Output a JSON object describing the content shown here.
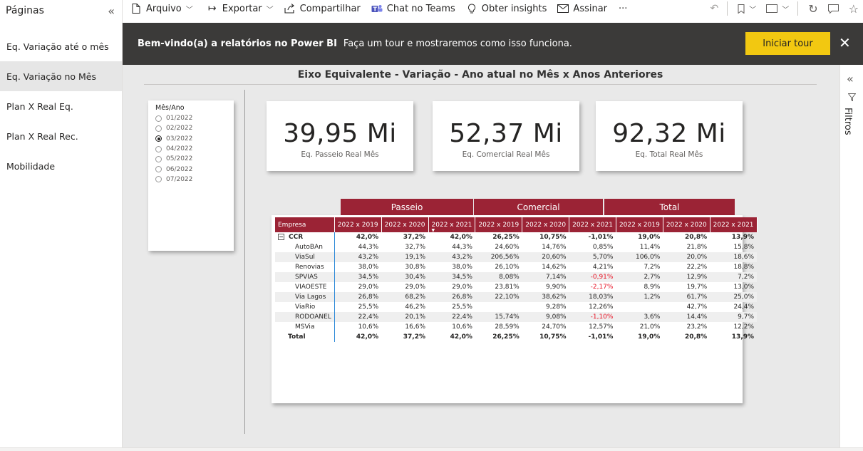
{
  "pages": {
    "title": "Páginas",
    "items": [
      {
        "label": "Eq. Variação até o mês",
        "active": false
      },
      {
        "label": "Eq. Variação no Mês",
        "active": true
      },
      {
        "label": "Plan X Real Eq.",
        "active": false
      },
      {
        "label": "Plan X Real Rec.",
        "active": false
      },
      {
        "label": "Mobilidade",
        "active": false
      }
    ]
  },
  "toolbar": {
    "file": "Arquivo",
    "export": "Exportar",
    "share": "Compartilhar",
    "teams": "Chat no Teams",
    "insights": "Obter insights",
    "subscribe": "Assinar",
    "more": "···"
  },
  "banner": {
    "bold": "Bem-vindo(a) a relatórios no Power BI",
    "text": "Faça um tour e mostraremos como isso funciona.",
    "button": "Iniciar tour",
    "close": "✕"
  },
  "report": {
    "title": "Eixo Equivalente - Variação - Ano atual no Mês x Anos Anteriores"
  },
  "slicer": {
    "title": "Mês/Ano",
    "options": [
      "01/2022",
      "02/2022",
      "03/2022",
      "04/2022",
      "05/2022",
      "06/2022",
      "07/2022"
    ],
    "selected": "03/2022"
  },
  "cards": [
    {
      "value": "39,95 Mi",
      "label": "Eq. Passeio Real Mês"
    },
    {
      "value": "52,37 Mi",
      "label": "Eq. Comercial Real Mês"
    },
    {
      "value": "92,32 Mi",
      "label": "Eq. Total Real Mês"
    }
  ],
  "matrix": {
    "groups": [
      "Passeio",
      "Comercial",
      "Total"
    ],
    "row_header": "Empresa",
    "columns": [
      "2022 x 2019",
      "2022 x 2020",
      "2022 x 2021",
      "2022 x 2019",
      "2022 x 2020",
      "2022 x 2021",
      "2022 x 2019",
      "2022 x 2020",
      "2022 x 2021"
    ],
    "rows": [
      {
        "name": "CCR",
        "level": 0,
        "bold": true,
        "expand": "−",
        "values": [
          "42,0%",
          "37,2%",
          "42,0%",
          "26,25%",
          "10,75%",
          "-1,01%",
          "19,0%",
          "20,8%",
          "13,9%"
        ]
      },
      {
        "name": "AutoBAn",
        "level": 1,
        "bold": false,
        "values": [
          "44,3%",
          "32,7%",
          "44,3%",
          "24,60%",
          "14,76%",
          "0,85%",
          "11,4%",
          "21,8%",
          "15,8%"
        ]
      },
      {
        "name": "ViaSul",
        "level": 1,
        "bold": false,
        "values": [
          "43,2%",
          "19,1%",
          "43,2%",
          "206,56%",
          "20,60%",
          "5,70%",
          "106,0%",
          "20,0%",
          "18,6%"
        ]
      },
      {
        "name": "Renovias",
        "level": 1,
        "bold": false,
        "values": [
          "38,0%",
          "30,8%",
          "38,0%",
          "26,10%",
          "14,62%",
          "4,21%",
          "7,2%",
          "22,2%",
          "18,8%"
        ]
      },
      {
        "name": "SPVIAS",
        "level": 1,
        "bold": false,
        "values": [
          "34,5%",
          "30,4%",
          "34,5%",
          "8,08%",
          "7,14%",
          "-0,91%",
          "2,7%",
          "12,9%",
          "7,2%"
        ]
      },
      {
        "name": "VIAOESTE",
        "level": 1,
        "bold": false,
        "values": [
          "29,0%",
          "29,0%",
          "29,0%",
          "23,81%",
          "9,90%",
          "-2,17%",
          "8,9%",
          "19,7%",
          "13,0%"
        ]
      },
      {
        "name": "Via Lagos",
        "level": 1,
        "bold": false,
        "values": [
          "26,8%",
          "68,2%",
          "26,8%",
          "22,10%",
          "38,62%",
          "18,03%",
          "1,2%",
          "61,7%",
          "25,0%"
        ]
      },
      {
        "name": "ViaRio",
        "level": 1,
        "bold": false,
        "values": [
          "25,5%",
          "46,2%",
          "25,5%",
          "",
          "9,28%",
          "12,26%",
          "",
          "42,7%",
          "24,4%"
        ]
      },
      {
        "name": "RODOANEL",
        "level": 1,
        "bold": false,
        "values": [
          "22,4%",
          "20,1%",
          "22,4%",
          "15,74%",
          "9,08%",
          "-1,10%",
          "3,6%",
          "14,4%",
          "9,7%"
        ]
      },
      {
        "name": "MSVia",
        "level": 1,
        "bold": false,
        "values": [
          "10,6%",
          "16,6%",
          "10,6%",
          "28,59%",
          "24,70%",
          "12,57%",
          "21,0%",
          "23,2%",
          "12,2%"
        ]
      },
      {
        "name": "Total",
        "level": 0,
        "bold": true,
        "values": [
          "42,0%",
          "37,2%",
          "42,0%",
          "26,25%",
          "10,75%",
          "-1,01%",
          "19,0%",
          "20,8%",
          "13,9%"
        ]
      }
    ],
    "accent_color": "#9b2335",
    "negative_color": "#e81123"
  },
  "filters": {
    "label": "Filtros"
  }
}
